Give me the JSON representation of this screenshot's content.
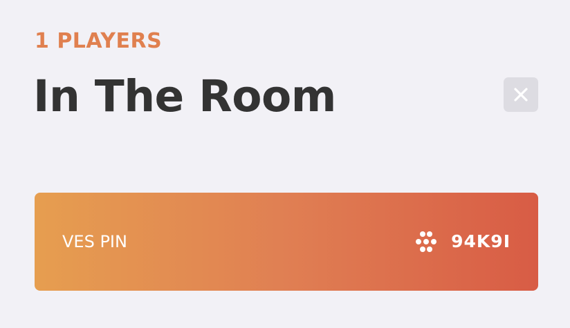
{
  "header": {
    "player_count": "1 PLAYERS",
    "title": "In The Room"
  },
  "close_button": {
    "icon": "close-icon"
  },
  "pin_card": {
    "label": "VES PIN",
    "icon": "dots-cluster-icon",
    "code": "94K9I"
  },
  "colors": {
    "background": "#f2f1f6",
    "accent": "#e0804f",
    "title": "#333333",
    "close_button_bg": "#dddce2",
    "gradient_start": "#e69e50",
    "gradient_end": "#d85c45"
  }
}
